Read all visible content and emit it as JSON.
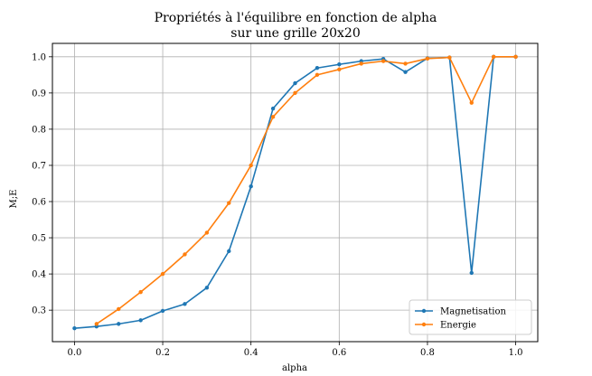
{
  "chart_data": {
    "type": "line",
    "title_lines": [
      "Propriétés à l'équilibre en fonction de alpha",
      "sur une grille 20x20"
    ],
    "xlabel": "alpha",
    "ylabel": "M;E",
    "xlim": [
      -0.05,
      1.05
    ],
    "ylim": [
      0.213,
      1.037
    ],
    "xticks": [
      0.0,
      0.2,
      0.4,
      0.6,
      0.8,
      1.0
    ],
    "xtick_labels": [
      "0.0",
      "0.2",
      "0.4",
      "0.6",
      "0.8",
      "1.0"
    ],
    "yticks": [
      0.3,
      0.4,
      0.5,
      0.6,
      0.7,
      0.8,
      0.9,
      1.0
    ],
    "ytick_labels": [
      "0.3",
      "0.4",
      "0.5",
      "0.6",
      "0.7",
      "0.8",
      "0.9",
      "1.0"
    ],
    "grid": true,
    "legend_position": "lower-right",
    "series": [
      {
        "name": "Magnetisation",
        "color": "#1f77b4",
        "x": [
          0.0,
          0.05,
          0.1,
          0.15,
          0.2,
          0.25,
          0.3,
          0.35,
          0.4,
          0.45,
          0.5,
          0.55,
          0.6,
          0.65,
          0.7,
          0.75,
          0.8,
          0.85,
          0.9,
          0.95,
          1.0
        ],
        "y": [
          0.25,
          0.255,
          0.262,
          0.272,
          0.298,
          0.317,
          0.362,
          0.463,
          0.642,
          0.857,
          0.927,
          0.969,
          0.979,
          0.988,
          0.994,
          0.958,
          0.996,
          0.998,
          0.403,
          1.0,
          1.0
        ]
      },
      {
        "name": "Energie",
        "color": "#ff7f0e",
        "x": [
          0.05,
          0.1,
          0.15,
          0.2,
          0.25,
          0.3,
          0.35,
          0.4,
          0.45,
          0.5,
          0.55,
          0.6,
          0.65,
          0.7,
          0.75,
          0.8,
          0.85,
          0.9,
          0.95,
          1.0
        ],
        "y": [
          0.262,
          0.303,
          0.35,
          0.4,
          0.454,
          0.514,
          0.596,
          0.7,
          0.834,
          0.9,
          0.95,
          0.965,
          0.981,
          0.988,
          0.981,
          0.995,
          0.998,
          0.873,
          1.0,
          1.0
        ]
      }
    ]
  }
}
